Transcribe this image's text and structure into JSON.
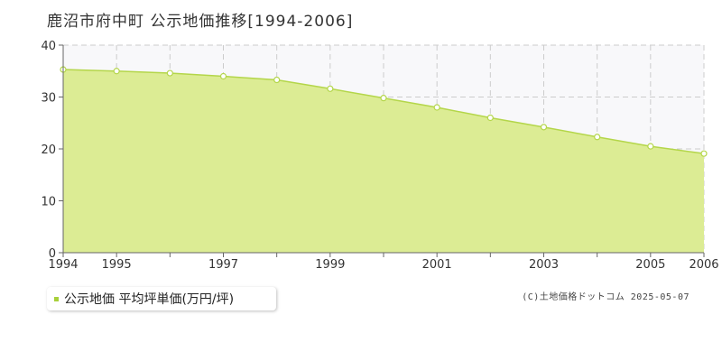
{
  "page": {
    "title": "鹿沼市府中町 公示地価推移[1994-2006]",
    "credit": "(C)土地価格ドットコム 2025-05-07"
  },
  "legend": {
    "label": "公示地価 平均坪単価(万円/坪)",
    "marker_color": "#a8d03a"
  },
  "colors": {
    "area_fill": "#dcec94",
    "line": "#b4d64a",
    "marker_fill": "#ffffff",
    "grid": "#cccccc",
    "plot_bg": "#f8f8fa"
  },
  "chart_data": {
    "type": "area",
    "title": "鹿沼市府中町 公示地価推移[1994-2006]",
    "xlabel": "",
    "ylabel": "",
    "ylim": [
      0,
      40
    ],
    "xlim": [
      1994,
      2006
    ],
    "yticks": [
      0,
      10,
      20,
      30,
      40
    ],
    "xtick_labels": [
      "1994",
      "1995",
      "1997",
      "1999",
      "2001",
      "2003",
      "2005",
      "2006"
    ],
    "grid": true,
    "legend_position": "bottom-left",
    "series": [
      {
        "name": "公示地価 平均坪単価(万円/坪)",
        "x": [
          1994,
          1995,
          1996,
          1997,
          1998,
          1999,
          2000,
          2001,
          2002,
          2003,
          2004,
          2005,
          2006
        ],
        "values": [
          35.3,
          35.0,
          34.6,
          34.0,
          33.3,
          31.6,
          29.8,
          28.0,
          26.0,
          24.2,
          22.3,
          20.5,
          19.1
        ]
      }
    ]
  }
}
